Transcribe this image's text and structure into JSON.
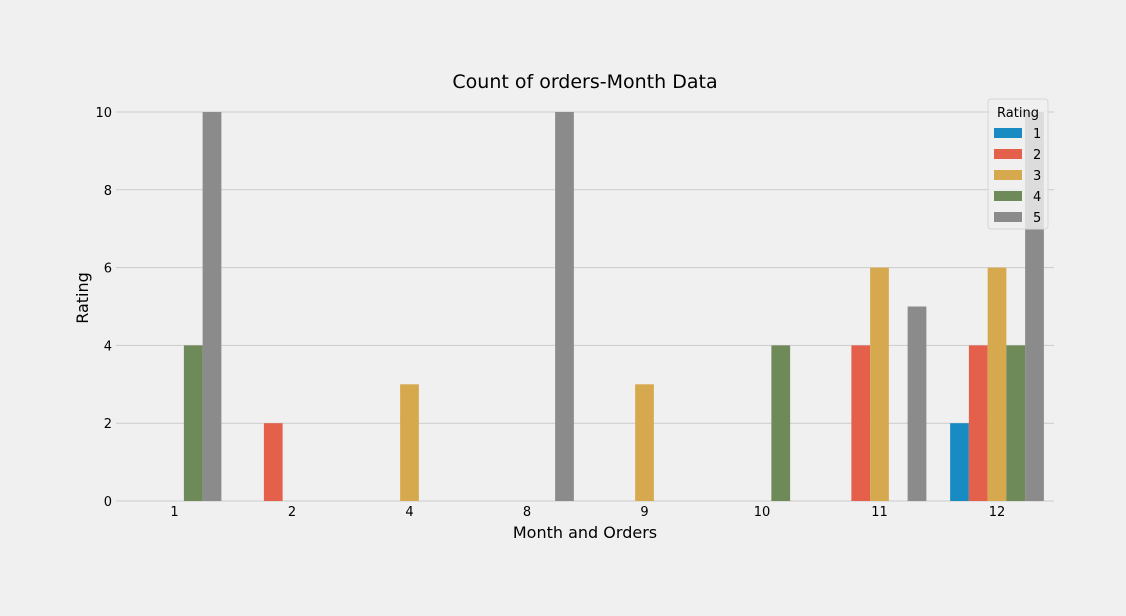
{
  "chart_data": {
    "type": "bar",
    "title": "Count of orders-Month Data",
    "xlabel": "Month and Orders",
    "ylabel": "Rating",
    "ylim": [
      0,
      10
    ],
    "yticks": [
      "0",
      "2",
      "4",
      "6",
      "8",
      "10"
    ],
    "categories": [
      "1",
      "2",
      "4",
      "8",
      "9",
      "10",
      "11",
      "12"
    ],
    "series": [
      {
        "name": "1",
        "color": "#188bc2",
        "values": [
          0,
          0,
          0,
          0,
          0,
          0,
          0,
          2
        ]
      },
      {
        "name": "2",
        "color": "#e5604a",
        "values": [
          0,
          2,
          0,
          0,
          0,
          0,
          4,
          4
        ]
      },
      {
        "name": "3",
        "color": "#d6a94f",
        "values": [
          0,
          0,
          3,
          0,
          3,
          0,
          6,
          6
        ]
      },
      {
        "name": "4",
        "color": "#6e8a58",
        "values": [
          4,
          0,
          0,
          0,
          0,
          4,
          0,
          4
        ]
      },
      {
        "name": "5",
        "color": "#8b8b8b",
        "values": [
          10,
          0,
          0,
          10,
          0,
          0,
          5,
          10
        ]
      }
    ],
    "legend": {
      "title": "Rating",
      "placement": "top-right"
    },
    "grid": true,
    "grid_axis": "y"
  }
}
